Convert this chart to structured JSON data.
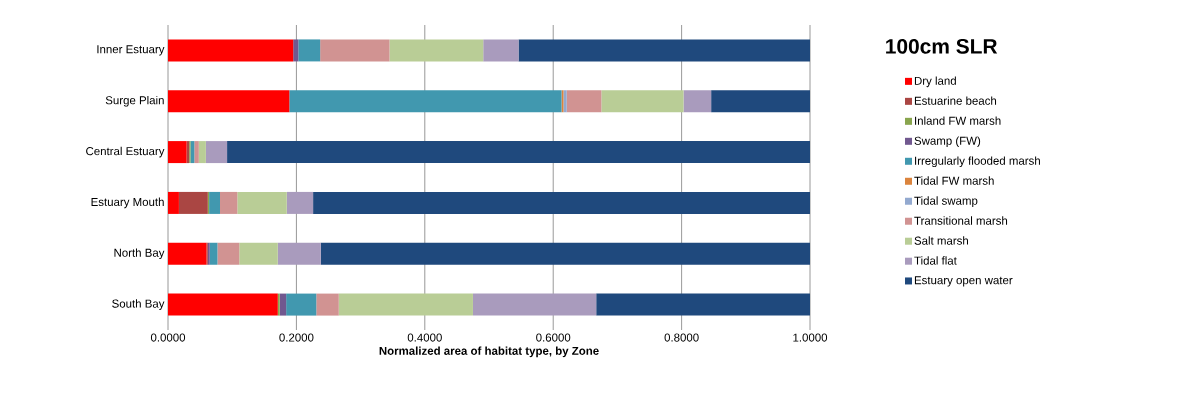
{
  "chart_data": {
    "type": "bar",
    "orientation": "horizontal",
    "stacked": true,
    "legend_title": "100cm SLR",
    "xlabel": "Normalized area of habitat type, by Zone",
    "categories": [
      "Inner Estuary",
      "Surge Plain",
      "Central Estuary",
      "Estuary Mouth",
      "North Bay",
      "South Bay"
    ],
    "xlim": [
      0,
      1
    ],
    "xticks": [
      {
        "value": 0,
        "label": "0.0000"
      },
      {
        "value": 0.2,
        "label": "0.2000"
      },
      {
        "value": 0.4,
        "label": "0.4000"
      },
      {
        "value": 0.6,
        "label": "0.6000"
      },
      {
        "value": 0.8,
        "label": "0.8000"
      },
      {
        "value": 1,
        "label": "1.0000"
      }
    ],
    "grid": "x",
    "legend": "right",
    "series": [
      {
        "name": "Dry land",
        "color": "#ff0000",
        "values": [
          0.195,
          0.189,
          0.029,
          0.017,
          0.06,
          0.171
        ]
      },
      {
        "name": "Estuarine beach",
        "color": "#aa4643",
        "values": [
          0,
          0,
          0.004,
          0.045,
          0.002,
          0
        ]
      },
      {
        "name": "Inland FW marsh",
        "color": "#89a54e",
        "values": [
          0,
          0,
          0.002,
          0.002,
          0,
          0.003
        ]
      },
      {
        "name": "Swamp (FW)",
        "color": "#71588f",
        "values": [
          0.008,
          0,
          0,
          0,
          0.003,
          0.01
        ]
      },
      {
        "name": "Irregularly flooded marsh",
        "color": "#4198af",
        "values": [
          0.034,
          0.424,
          0.006,
          0.017,
          0.012,
          0.047
        ]
      },
      {
        "name": "Tidal FW marsh",
        "color": "#db843d",
        "values": [
          0,
          0.003,
          0,
          0,
          0,
          0
        ]
      },
      {
        "name": "Tidal swamp",
        "color": "#93a9cf",
        "values": [
          0,
          0.005,
          0,
          0,
          0,
          0
        ]
      },
      {
        "name": "Transitional marsh",
        "color": "#d19392",
        "values": [
          0.108,
          0.054,
          0.007,
          0.027,
          0.034,
          0.035
        ]
      },
      {
        "name": "Salt marsh",
        "color": "#b9cd96",
        "values": [
          0.146,
          0.128,
          0.011,
          0.077,
          0.06,
          0.209
        ]
      },
      {
        "name": "Tidal flat",
        "color": "#a99bbd",
        "values": [
          0.055,
          0.043,
          0.033,
          0.041,
          0.067,
          0.192
        ]
      },
      {
        "name": "Estuary open water",
        "color": "#1f497d",
        "values": [
          0.454,
          0.154,
          0.908,
          0.774,
          0.762,
          0.333
        ]
      }
    ]
  }
}
